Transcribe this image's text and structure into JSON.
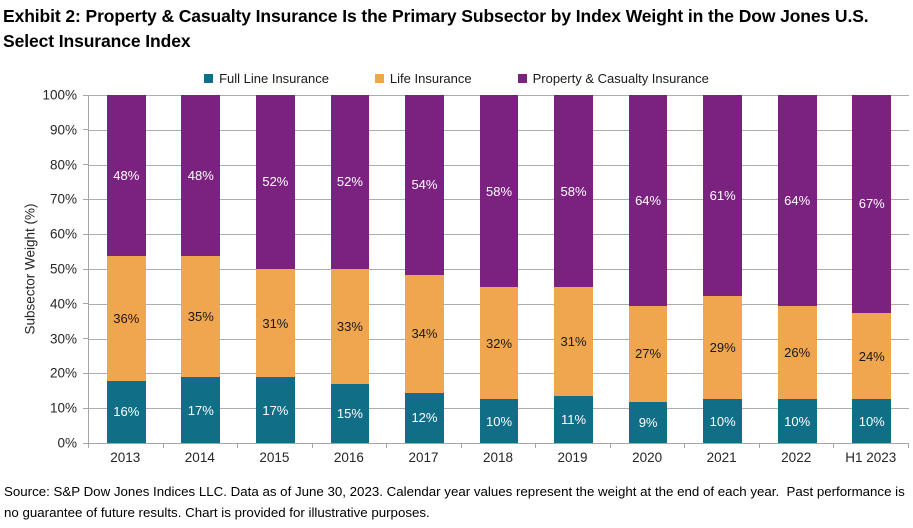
{
  "title": "Exhibit 2: Property & Casualty Insurance Is the Primary Subsector by Index Weight in the Dow Jones U.S. Select Insurance Index",
  "footer": "Source: S&P Dow Jones Indices LLC. Data as of June 30, 2023. Calendar year values represent the weight at the end of each year.  Past performance is no guarantee of future results. Chart is provided for illustrative purposes.",
  "chart_data": {
    "type": "bar",
    "stacked": true,
    "title": "Exhibit 2: Property & Casualty Insurance Is the Primary Subsector by Index Weight in the Dow Jones U.S. Select Insurance Index",
    "xlabel": "",
    "ylabel": "Subsector Weight (%)",
    "ylim": [
      0,
      100
    ],
    "grid": true,
    "legend_position": "top",
    "y_ticks": [
      "0%",
      "10%",
      "20%",
      "30%",
      "40%",
      "50%",
      "60%",
      "70%",
      "80%",
      "90%",
      "100%"
    ],
    "categories": [
      "2013",
      "2014",
      "2015",
      "2016",
      "2017",
      "2018",
      "2019",
      "2020",
      "2021",
      "2022",
      "H1 2023"
    ],
    "series": [
      {
        "name": "Full Line Insurance",
        "color": "#106e87",
        "label_color": "#ffffff",
        "values": [
          16,
          17,
          17,
          15,
          12,
          10,
          11,
          9,
          10,
          10,
          10
        ]
      },
      {
        "name": "Life Insurance",
        "color": "#f0a54f",
        "label_color": "#1a1a1a",
        "values": [
          36,
          35,
          31,
          33,
          34,
          32,
          31,
          27,
          29,
          26,
          24
        ]
      },
      {
        "name": "Property & Casualty Insurance",
        "color": "#7b2281",
        "label_color": "#ffffff",
        "values": [
          48,
          48,
          52,
          52,
          54,
          58,
          58,
          64,
          61,
          64,
          67
        ]
      }
    ]
  }
}
